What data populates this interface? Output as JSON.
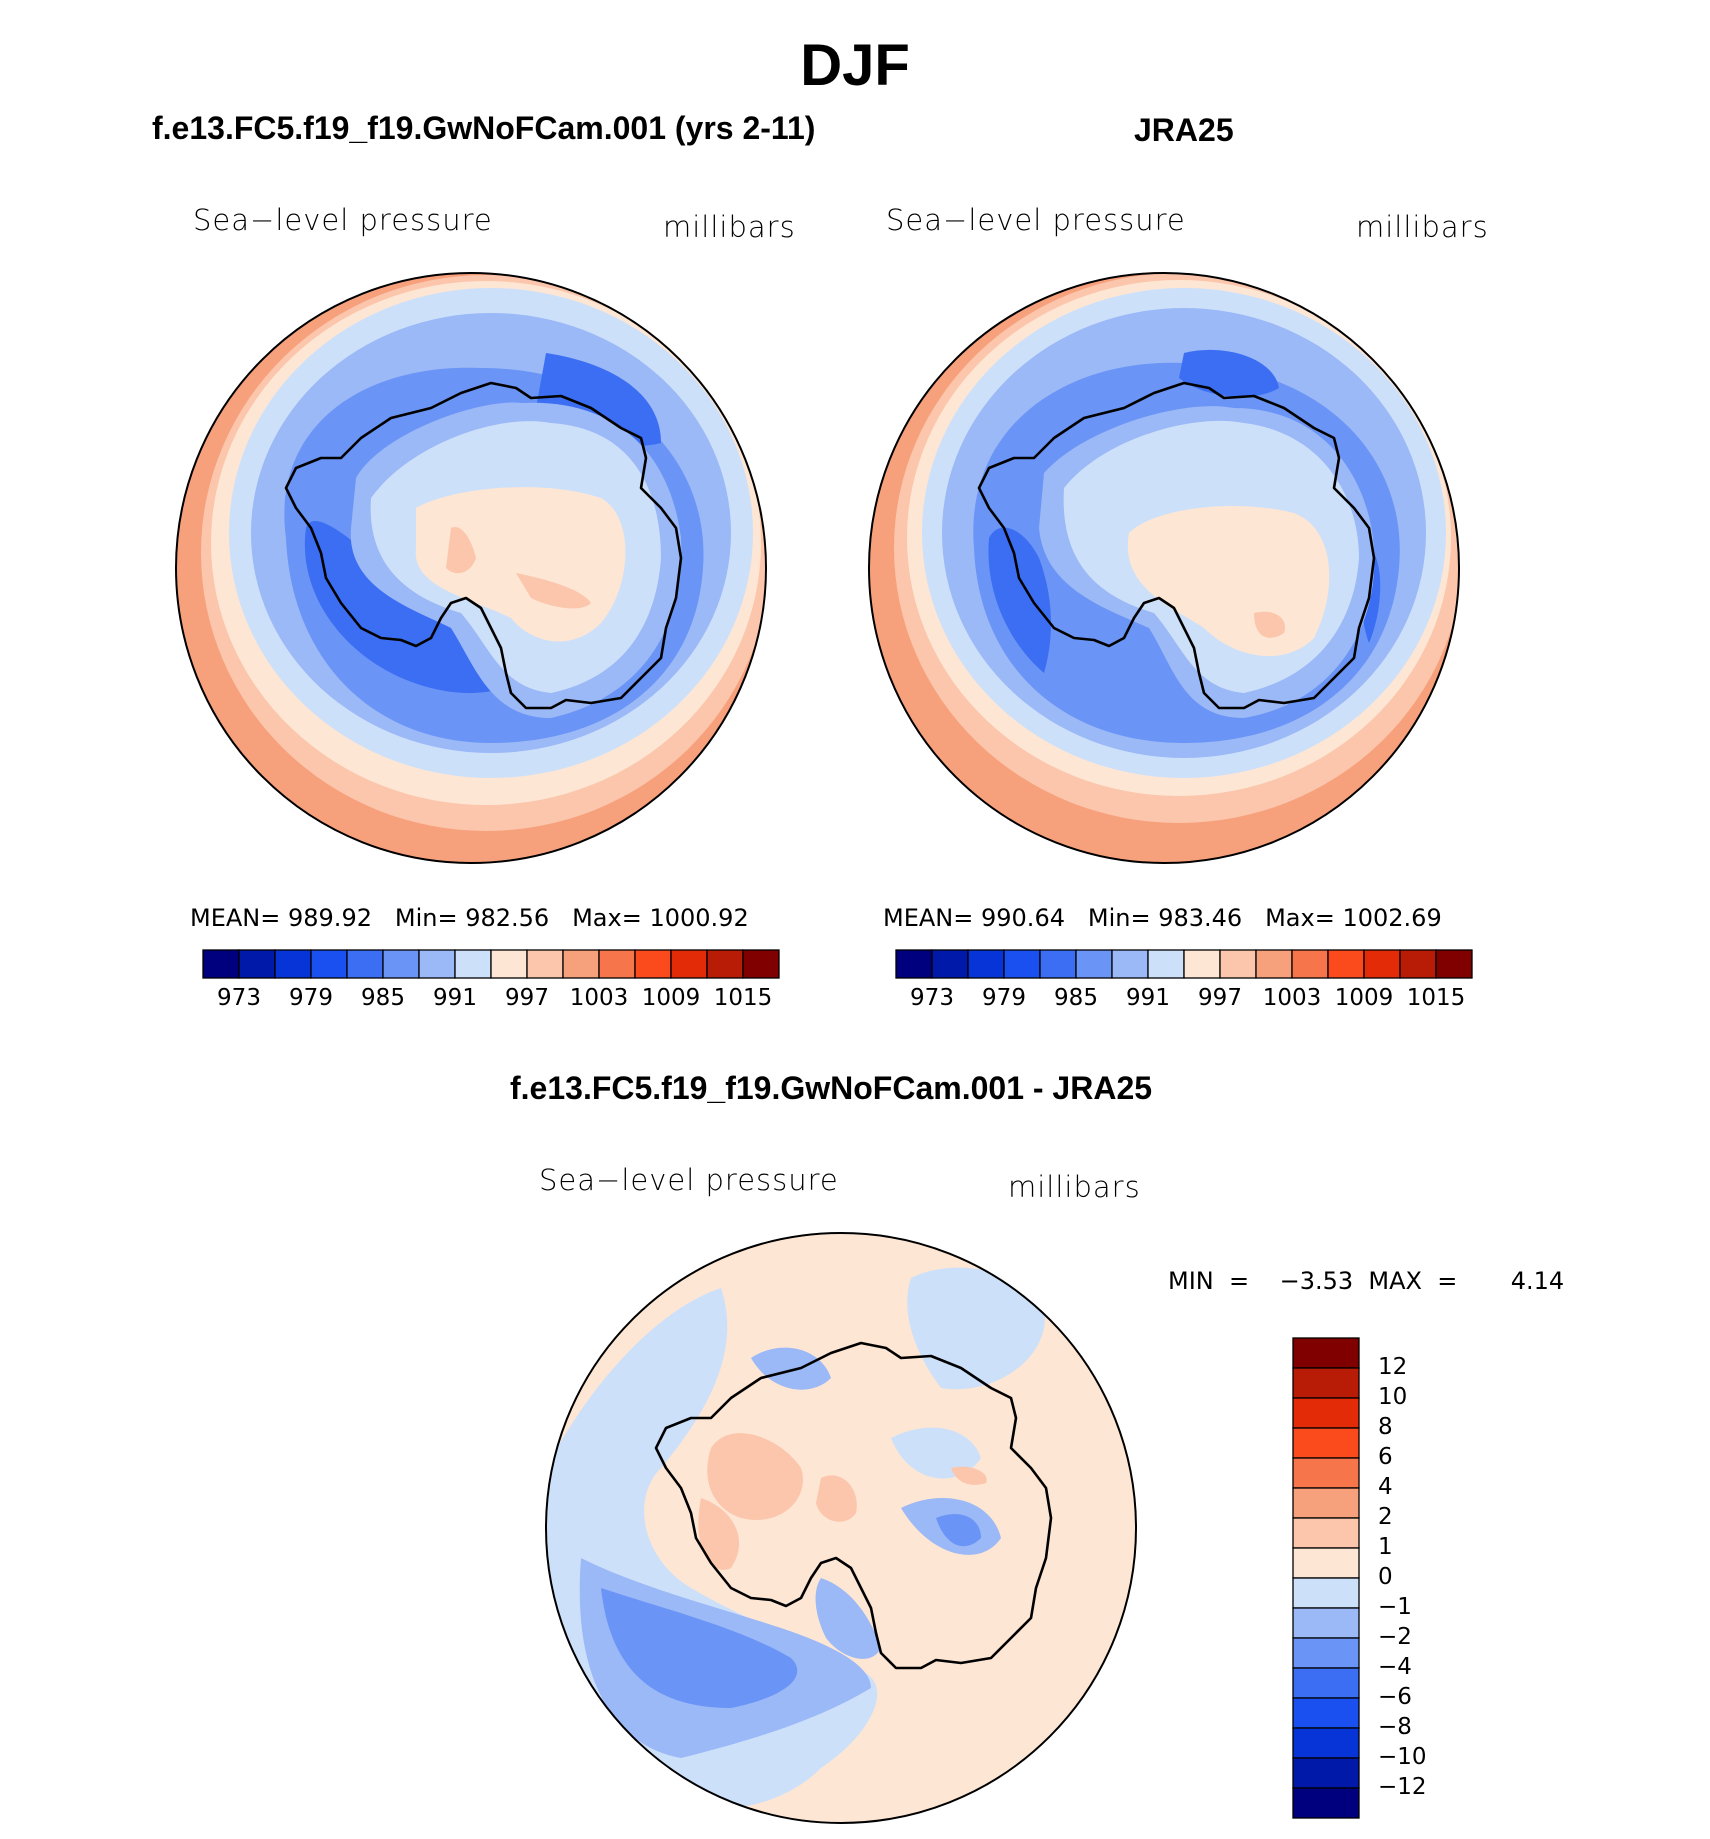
{
  "figure": {
    "title": "DJF"
  },
  "panels": [
    {
      "id": "model",
      "title": "f.e13.FC5.f19_f19.GwNoFCam.001 (yrs 2-11)",
      "left_label": "Sea−level pressure",
      "right_label": "millibars",
      "stats": {
        "mean_label": "MEAN=",
        "mean": "989.92",
        "min_label": "Min=",
        "min": "982.56",
        "max_label": "Max=",
        "max": "1000.92"
      }
    },
    {
      "id": "obs",
      "title": "JRA25",
      "left_label": "Sea−level pressure",
      "right_label": "millibars",
      "stats": {
        "mean_label": "MEAN=",
        "mean": "990.64",
        "min_label": "Min=",
        "min": "983.46",
        "max_label": "Max=",
        "max": "1002.69"
      }
    },
    {
      "id": "diff",
      "title": "f.e13.FC5.f19_f19.GwNoFCam.001 - JRA25",
      "left_label": "Sea−level pressure",
      "right_label": "millibars",
      "stats_text": "MIN  =    −3.53  MAX  =       4.14"
    }
  ],
  "colorbars": {
    "absolute": {
      "colors": [
        "#00007f",
        "#0019a8",
        "#0634d6",
        "#1a50f0",
        "#3b6ef3",
        "#6a94f5",
        "#9bb8f7",
        "#cde0fa",
        "#fde6d4",
        "#fbc6ac",
        "#f7a07c",
        "#f7754a",
        "#fb4a1c",
        "#e32b07",
        "#b81c06",
        "#800000"
      ],
      "tick_labels": [
        "973",
        "979",
        "985",
        "991",
        "997",
        "1003",
        "1009",
        "1015"
      ]
    },
    "difference": {
      "colors": [
        "#800000",
        "#b81c06",
        "#e32b07",
        "#fb4a1c",
        "#f7754a",
        "#f7a07c",
        "#fbc6ac",
        "#fde6d4",
        "#cde0fa",
        "#9bb8f7",
        "#6a94f5",
        "#3b6ef3",
        "#1a50f0",
        "#0634d6",
        "#0019a8",
        "#00007f"
      ],
      "tick_labels": [
        "12",
        "10",
        "8",
        "6",
        "4",
        "2",
        "1",
        "0",
        "−1",
        "−2",
        "−4",
        "−6",
        "−8",
        "−10",
        "−12"
      ]
    }
  }
}
